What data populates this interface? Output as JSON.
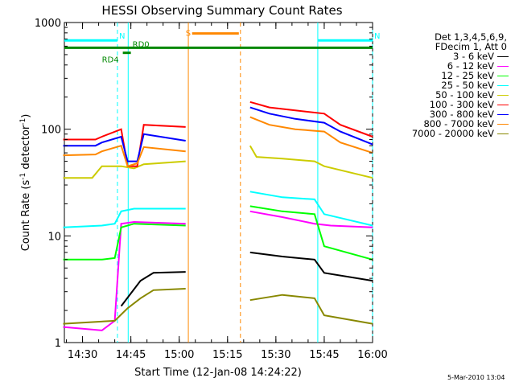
{
  "chart_data": {
    "type": "line",
    "title": "HESSI Observing Summary Count Rates",
    "xlabel": "Start Time (12-Jan-08 14:24:22)",
    "ylabel_parts": [
      "Count Rate (s",
      "-1",
      " detector",
      "-1",
      ")"
    ],
    "y_scale": "log",
    "ylim": [
      1,
      1000
    ],
    "x_range": [
      "14:24:22",
      "16:00:00"
    ],
    "x_ticks": [
      "14:30",
      "14:45",
      "15:00",
      "15:15",
      "15:30",
      "15:45",
      "16:00"
    ],
    "y_ticks": [
      "1",
      "10",
      "100",
      "1000"
    ],
    "legend_header": [
      "Det 1,3,4,5,6,9,",
      "FDecim 1, Att 0"
    ],
    "series": [
      {
        "name": "3 - 6 keV",
        "color": "#000000",
        "points": [
          [
            "14:24",
            "null"
          ],
          [
            "14:42",
            2.2
          ],
          [
            "14:48",
            3.8
          ],
          [
            "14:52",
            4.5
          ],
          [
            "15:02",
            4.6
          ],
          [
            "15:03",
            "null"
          ],
          [
            "15:22",
            "null"
          ],
          [
            "15:22",
            7.0
          ],
          [
            "15:32",
            6.4
          ],
          [
            "15:42",
            6.0
          ],
          [
            "15:45",
            4.5
          ],
          [
            "16:00",
            3.8
          ]
        ]
      },
      {
        "name": "6 - 12 keV",
        "color": "#ff00ff",
        "points": [
          [
            "14:24",
            1.4
          ],
          [
            "14:36",
            1.3
          ],
          [
            "14:40",
            1.6
          ],
          [
            "14:42",
            13.0
          ],
          [
            "14:46",
            13.5
          ],
          [
            "15:02",
            13.0
          ],
          [
            "15:03",
            "null"
          ],
          [
            "15:22",
            "null"
          ],
          [
            "15:22",
            17.0
          ],
          [
            "15:32",
            15.0
          ],
          [
            "15:42",
            13.0
          ],
          [
            "15:47",
            12.5
          ],
          [
            "16:00",
            12.0
          ]
        ]
      },
      {
        "name": "12 - 25 keV",
        "color": "#00ff00",
        "points": [
          [
            "14:24",
            6.0
          ],
          [
            "14:36",
            6.0
          ],
          [
            "14:40",
            6.2
          ],
          [
            "14:42",
            12.0
          ],
          [
            "14:46",
            13.0
          ],
          [
            "15:02",
            12.5
          ],
          [
            "15:03",
            "null"
          ],
          [
            "15:22",
            "null"
          ],
          [
            "15:22",
            19.0
          ],
          [
            "15:32",
            17.0
          ],
          [
            "15:42",
            16.0
          ],
          [
            "15:45",
            8.0
          ],
          [
            "16:00",
            6.0
          ]
        ]
      },
      {
        "name": "25 - 50 keV",
        "color": "#00ffff",
        "points": [
          [
            "14:24",
            12.0
          ],
          [
            "14:36",
            12.5
          ],
          [
            "14:40",
            13.0
          ],
          [
            "14:42",
            17.0
          ],
          [
            "14:46",
            18.0
          ],
          [
            "15:02",
            18.0
          ],
          [
            "15:03",
            "null"
          ],
          [
            "15:22",
            "null"
          ],
          [
            "15:22",
            26.0
          ],
          [
            "15:32",
            23.0
          ],
          [
            "15:42",
            22.0
          ],
          [
            "15:45",
            16.0
          ],
          [
            "16:00",
            12.5
          ]
        ]
      },
      {
        "name": "50 - 100 keV",
        "color": "#cccc00",
        "points": [
          [
            "14:24",
            35.0
          ],
          [
            "14:33",
            35.0
          ],
          [
            "14:36",
            45.0
          ],
          [
            "14:42",
            45.0
          ],
          [
            "14:46",
            43.0
          ],
          [
            "14:49",
            47.0
          ],
          [
            "15:02",
            50.0
          ],
          [
            "15:03",
            "null"
          ],
          [
            "15:22",
            "null"
          ],
          [
            "15:22",
            70.0
          ],
          [
            "15:24",
            55.0
          ],
          [
            "15:32",
            53.0
          ],
          [
            "15:42",
            50.0
          ],
          [
            "15:45",
            45.0
          ],
          [
            "16:00",
            35.0
          ]
        ]
      },
      {
        "name": "100 - 300 keV",
        "color": "#ff0000",
        "points": [
          [
            "14:24",
            80.0
          ],
          [
            "14:34",
            80.0
          ],
          [
            "14:36",
            85.0
          ],
          [
            "14:42",
            100.0
          ],
          [
            "14:44",
            45.0
          ],
          [
            "14:47",
            45.0
          ],
          [
            "14:49",
            110.0
          ],
          [
            "15:02",
            105.0
          ],
          [
            "15:03",
            "null"
          ],
          [
            "15:22",
            "null"
          ],
          [
            "15:22",
            180.0
          ],
          [
            "15:28",
            160.0
          ],
          [
            "15:36",
            150.0
          ],
          [
            "15:45",
            140.0
          ],
          [
            "15:50",
            110.0
          ],
          [
            "16:00",
            85.0
          ]
        ]
      },
      {
        "name": "300 - 800 keV",
        "color": "#0000ff",
        "points": [
          [
            "14:24",
            70.0
          ],
          [
            "14:34",
            70.0
          ],
          [
            "14:36",
            75.0
          ],
          [
            "14:42",
            85.0
          ],
          [
            "14:44",
            50.0
          ],
          [
            "14:47",
            50.0
          ],
          [
            "14:49",
            90.0
          ],
          [
            "15:02",
            78.0
          ],
          [
            "15:03",
            "null"
          ],
          [
            "15:22",
            "null"
          ],
          [
            "15:22",
            160.0
          ],
          [
            "15:28",
            140.0
          ],
          [
            "15:36",
            125.0
          ],
          [
            "15:45",
            115.0
          ],
          [
            "15:50",
            95.0
          ],
          [
            "16:00",
            72.0
          ]
        ]
      },
      {
        "name": "800 - 7000 keV",
        "color": "#ff8800",
        "points": [
          [
            "14:24",
            57.0
          ],
          [
            "14:34",
            58.0
          ],
          [
            "14:36",
            62.0
          ],
          [
            "14:42",
            70.0
          ],
          [
            "14:44",
            45.0
          ],
          [
            "14:47",
            48.0
          ],
          [
            "14:49",
            68.0
          ],
          [
            "15:02",
            62.0
          ],
          [
            "15:03",
            "null"
          ],
          [
            "15:22",
            "null"
          ],
          [
            "15:22",
            130.0
          ],
          [
            "15:28",
            110.0
          ],
          [
            "15:36",
            100.0
          ],
          [
            "15:45",
            95.0
          ],
          [
            "15:50",
            75.0
          ],
          [
            "16:00",
            60.0
          ]
        ]
      },
      {
        "name": "7000 - 20000 keV",
        "color": "#888800",
        "points": [
          [
            "14:24",
            1.5
          ],
          [
            "14:40",
            1.6
          ],
          [
            "14:44",
            2.1
          ],
          [
            "14:48",
            2.6
          ],
          [
            "14:52",
            3.1
          ],
          [
            "15:02",
            3.2
          ],
          [
            "15:03",
            "null"
          ],
          [
            "15:22",
            "null"
          ],
          [
            "15:22",
            2.5
          ],
          [
            "15:32",
            2.8
          ],
          [
            "15:42",
            2.6
          ],
          [
            "15:45",
            1.8
          ],
          [
            "16:00",
            1.5
          ]
        ]
      }
    ],
    "intervals": [
      {
        "label": "N",
        "color": "#00ffff",
        "start": "14:24:22",
        "end": "14:40:50",
        "style": "bar",
        "level": 680
      },
      {
        "label": "N",
        "color": "#00ffff",
        "start": "15:43:00",
        "end": "16:00:00",
        "style": "bar",
        "level": 680
      },
      {
        "label": "S",
        "color": "#ff8800",
        "start": "15:04:00",
        "end": "15:18:30",
        "style": "bar",
        "level": 790
      },
      {
        "label": "RD0",
        "color": "#008800",
        "start": "14:24:22",
        "end": "16:00:00",
        "style": "bar",
        "level": 580
      },
      {
        "label": "RD4",
        "color": "#008800",
        "start": "14:42:30",
        "end": "14:45:00",
        "style": "bar",
        "level": 520
      }
    ],
    "event_lines": [
      {
        "time": "14:40:50",
        "color": "#00ffff",
        "dash": true
      },
      {
        "time": "14:44:10",
        "color": "#00ffff",
        "dash": false
      },
      {
        "time": "15:02:50",
        "color": "#ff8800",
        "dash": false
      },
      {
        "time": "15:19:00",
        "color": "#ff8800",
        "dash": true
      },
      {
        "time": "15:43:00",
        "color": "#00ffff",
        "dash": false
      },
      {
        "time": "16:00:00",
        "color": "#00ffff",
        "dash": true
      }
    ],
    "grid": false,
    "legend_position": "right"
  },
  "footer": "5-Mar-2010 13:04"
}
